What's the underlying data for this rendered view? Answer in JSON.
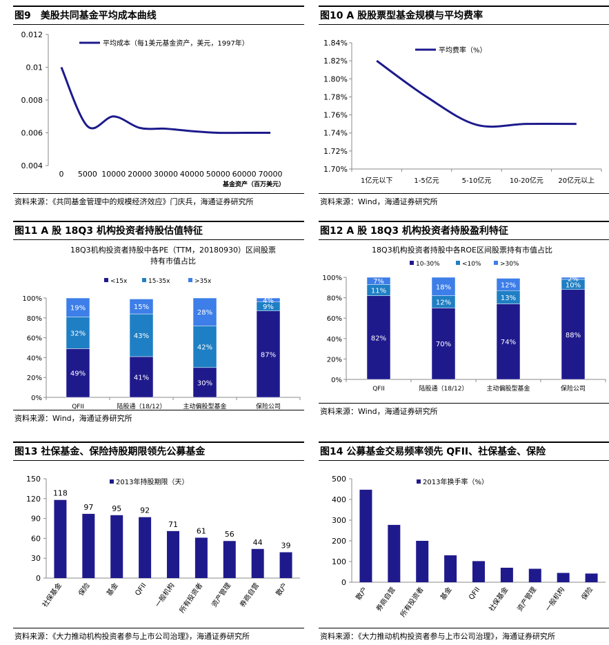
{
  "panels": [
    {
      "title": "图9　美股共同基金平均成本曲线",
      "source": "资料来源：《共同基金管理中的规模经济效应》门庆兵，海通证券研究所",
      "chart_data": {
        "type": "line",
        "legend": "平均成本（每1美元基金资产，美元，1997年）",
        "xlabel": "基金资产（百万美元）",
        "x_ticks": [
          "0",
          "5000",
          "10000",
          "20000",
          "30000",
          "40000",
          "50000",
          "60000",
          "70000"
        ],
        "y_ticks": [
          "0.012",
          "0.01",
          "0.008",
          "0.006",
          "0.004"
        ],
        "ylim": [
          0.004,
          0.012
        ],
        "series": [
          {
            "values": [
              0.01,
              0.0064,
              0.007,
              0.0063,
              0.00625,
              0.0061,
              0.006,
              0.006,
              0.006
            ]
          }
        ],
        "color": "#1c1a8c"
      }
    },
    {
      "title": "图10 A 股股票型基金规模与平均费率",
      "source": "资料来源：Wind，海通证券研究所",
      "chart_data": {
        "type": "line",
        "legend": "平均费率（%）",
        "categories": [
          "1亿元以下",
          "1-5亿元",
          "5-10亿元",
          "10-20亿元",
          "20亿元以上"
        ],
        "y_ticks": [
          "1.84%",
          "1.82%",
          "1.80%",
          "1.78%",
          "1.76%",
          "1.74%",
          "1.72%",
          "1.70%"
        ],
        "ylim": [
          1.7,
          1.84
        ],
        "series": [
          {
            "values": [
              1.82,
              1.78,
              1.749,
              1.75,
              1.75
            ]
          }
        ],
        "color": "#1c1a8c"
      }
    },
    {
      "title": "图11 A 股 18Q3 机构投资者持股估值特征",
      "source": "资料来源：Wind，海通证券研究所",
      "chart_data": {
        "type": "bar",
        "stacked": true,
        "title_lines": [
          "18Q3机构投资者持股中各PE（TTM，20180930）区间股票",
          "持有市值占比"
        ],
        "categories": [
          "QFII",
          "陆股通（18/12）",
          "主动偏股型基金",
          "保险公司"
        ],
        "y_ticks": [
          "100%",
          "80%",
          "60%",
          "40%",
          "20%",
          "0%"
        ],
        "series": [
          {
            "name": "<15x",
            "color": "#1f1a8c",
            "values": [
              49,
              41,
              30,
              87
            ],
            "labels": [
              "49%",
              "41%",
              "30%",
              "87%"
            ]
          },
          {
            "name": "15-35x",
            "color": "#1f7fc4",
            "values": [
              32,
              43,
              42,
              9
            ],
            "labels": [
              "32%",
              "43%",
              "42%",
              "9%"
            ]
          },
          {
            "name": ">35x",
            "color": "#3d7ee8",
            "values": [
              19,
              15,
              28,
              4
            ],
            "labels": [
              "19%",
              "15%",
              "28%",
              "4%"
            ]
          }
        ]
      }
    },
    {
      "title": "图12 A 股 18Q3 机构投资者持股盈利特征",
      "source": "资料来源：Wind，海通证券研究所",
      "chart_data": {
        "type": "bar",
        "stacked": true,
        "title_lines": [
          "18Q3机构投资者持股中各ROE区间股票持有市值占比"
        ],
        "categories": [
          "QFII",
          "陆股通（18/12）",
          "主动偏股型基金",
          "保险公司"
        ],
        "y_ticks": [
          "100%",
          "80%",
          "60%",
          "40%",
          "20%",
          "0%"
        ],
        "series": [
          {
            "name": "10-30%",
            "color": "#1f1a8c",
            "values": [
              82,
              70,
              74,
              88
            ],
            "labels": [
              "82%",
              "70%",
              "74%",
              "88%"
            ]
          },
          {
            "name": "<10%",
            "color": "#1f7fc4",
            "values": [
              11,
              12,
              13,
              10
            ],
            "labels": [
              "11%",
              "12%",
              "13%",
              "10%"
            ]
          },
          {
            "name": ">30%",
            "color": "#3d7ee8",
            "values": [
              7,
              18,
              12,
              2
            ],
            "labels": [
              "7%",
              "18%",
              "12%",
              "2%"
            ]
          }
        ]
      }
    },
    {
      "title": "图13 社保基金、保险持股期限领先公募基金",
      "source": "资料来源：《大力推动机构投资者参与上市公司治理》，海通证券研究所",
      "chart_data": {
        "type": "bar",
        "legend": "2013年持股期限（天）",
        "categories": [
          "社保基金",
          "保险",
          "基金",
          "QFII",
          "一般机构",
          "所有投资者",
          "资产管理",
          "券商自营",
          "散户"
        ],
        "values": [
          118,
          97,
          95,
          92,
          71,
          61,
          56,
          44,
          39
        ],
        "value_labels": [
          "118",
          "97",
          "95",
          "92",
          "71",
          "61",
          "56",
          "44",
          "39"
        ],
        "y_ticks": [
          "150",
          "120",
          "90",
          "60",
          "30",
          "0"
        ],
        "ylim": [
          0,
          150
        ],
        "color": "#1f1a8c"
      }
    },
    {
      "title": "图14 公募基金交易频率领先 QFII、社保基金、保险",
      "source": "资料来源：《大力推动机构投资者参与上市公司治理》，海通证券研究所",
      "chart_data": {
        "type": "bar",
        "legend": "2013年换手率（%）",
        "categories": [
          "散户",
          "券商自营",
          "所有投资者",
          "基金",
          "QFII",
          "社保基金",
          "资产管理",
          "一般机构",
          "保险"
        ],
        "values": [
          447,
          277,
          200,
          130,
          102,
          70,
          65,
          45,
          42
        ],
        "y_ticks": [
          "500",
          "400",
          "300",
          "200",
          "100",
          "0"
        ],
        "ylim": [
          0,
          500
        ],
        "color": "#1f1a8c"
      }
    }
  ]
}
